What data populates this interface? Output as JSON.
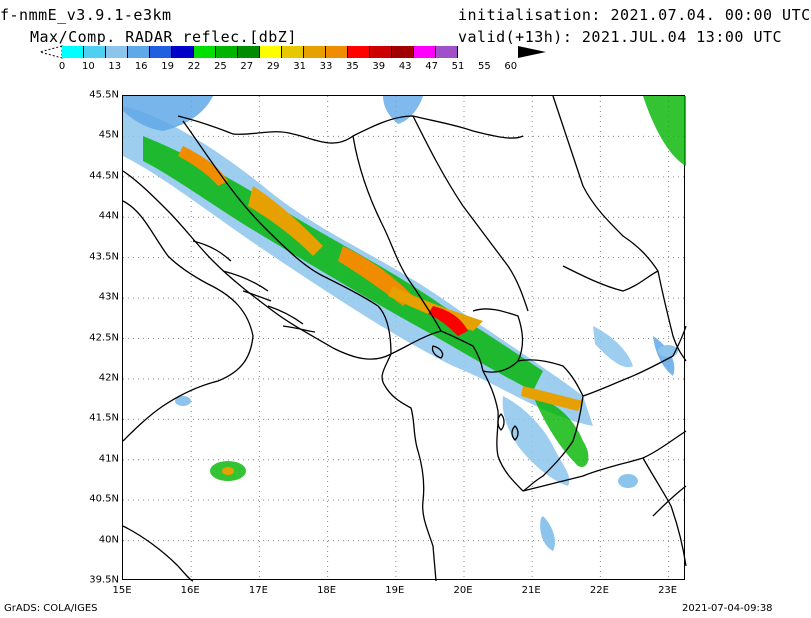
{
  "header": {
    "model": "f-nmmE_v3.9.1-e3km",
    "field": "Max/Comp. RADAR reflec.[dbZ]",
    "init": "initialisation: 2021.07.04. 00:00 UTC",
    "valid": "valid(+13h): 2021.JUL.04 13:00 UTC"
  },
  "colorbar": {
    "labels": [
      "0",
      "10",
      "13",
      "16",
      "19",
      "22",
      "25",
      "27",
      "29",
      "31",
      "33",
      "35",
      "39",
      "43",
      "47",
      "51",
      "55",
      "60"
    ],
    "colors": [
      "#00ffff",
      "#4fd0f0",
      "#8cc4ec",
      "#60a8e8",
      "#2060e0",
      "#0000c8",
      "#00e000",
      "#00b400",
      "#008c00",
      "#fefe00",
      "#e6c800",
      "#e6a000",
      "#f08c00",
      "#ff0000",
      "#cc0000",
      "#a00000",
      "#ff00ff",
      "#a050c8"
    ]
  },
  "map": {
    "lat_labels": [
      "45.5N",
      "45N",
      "44.5N",
      "44N",
      "43.5N",
      "43N",
      "42.5N",
      "42N",
      "41.5N",
      "41N",
      "40.5N",
      "40N",
      "39.5N"
    ],
    "lon_labels": [
      "15E",
      "16E",
      "17E",
      "18E",
      "19E",
      "20E",
      "21E",
      "22E",
      "23E"
    ]
  },
  "footer": {
    "left": "GrADS: COLA/IGES",
    "right": "2021-07-04-09:38"
  }
}
